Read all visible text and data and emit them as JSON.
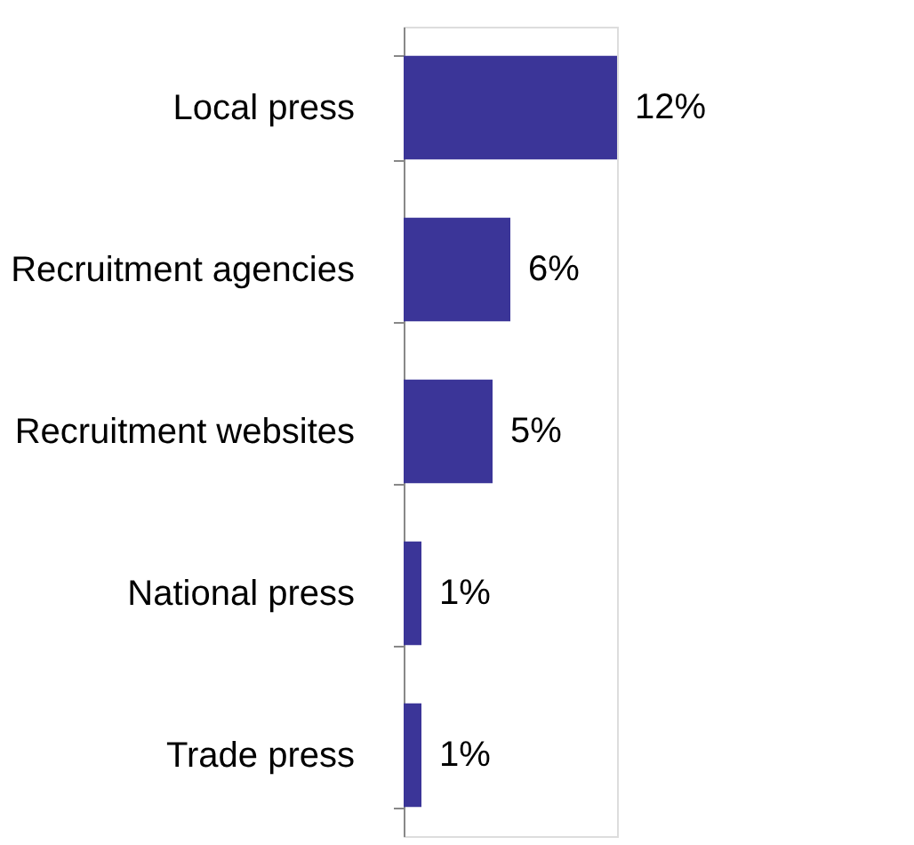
{
  "chart_data": {
    "type": "bar",
    "orientation": "horizontal",
    "categories": [
      "Local press",
      "Recruitment agencies",
      "Recruitment websites",
      "National press",
      "Trade press"
    ],
    "values": [
      12,
      6,
      5,
      1,
      1
    ],
    "value_labels": [
      "12%",
      "6%",
      "5%",
      "1%",
      "1%"
    ],
    "color": "#3b3598",
    "grid": false
  }
}
